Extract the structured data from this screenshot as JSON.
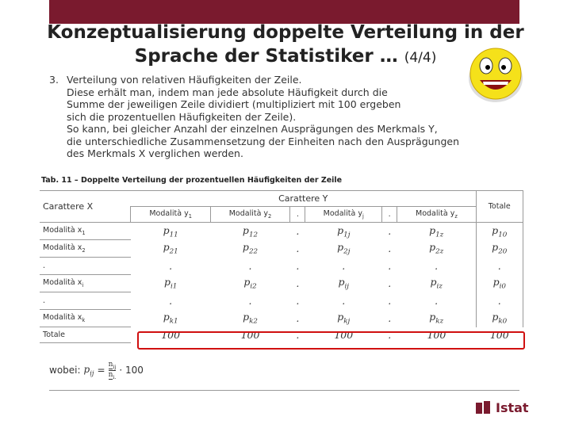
{
  "title": {
    "line1": "Konzeptualisierung doppelte Verteilung in der",
    "line2": "Sprache der Statistiker …",
    "counter": "(4/4)"
  },
  "point": {
    "number": "3.",
    "lines": [
      "Verteilung von relativen Häufigkeiten der Zeile.",
      "Diese erhält man, indem man jede absolute Häufigkeit durch die",
      "Summe der jeweiligen Zeile dividiert (multipliziert mit 100 ergeben",
      "sich die prozentuellen Häufigkeiten der Zeile).",
      "So kann, bei gleicher Anzahl der einzelnen Ausprägungen des Merkmals Y,",
      "die unterschiedliche Zusammensetzung der Einheiten nach den Ausprägungen",
      "des Merkmals X verglichen werden."
    ]
  },
  "table": {
    "caption": "Tab. 11 – Doppelte Verteilung der prozentuellen Häufigkeiten der Zeile",
    "row_header": "Carattere X",
    "group_header": "Carattere Y",
    "total_header": "Totale",
    "columns": [
      {
        "text": "Modalità y",
        "sub": "1"
      },
      {
        "text": "Modalità y",
        "sub": "2"
      },
      {
        "text": "."
      },
      {
        "text": "Modalità y",
        "sub": "j"
      },
      {
        "text": "."
      },
      {
        "text": "Modalità y",
        "sub": "z"
      }
    ],
    "rows": [
      {
        "label": {
          "text": "Modalità x",
          "sub": "1"
        },
        "cells": [
          {
            "text": "p",
            "sub": "11"
          },
          {
            "text": "p",
            "sub": "12"
          },
          {
            "text": "."
          },
          {
            "text": "p",
            "sub": "1j"
          },
          {
            "text": "."
          },
          {
            "text": "p",
            "sub": "1z"
          },
          {
            "text": "p",
            "sub": "10"
          }
        ]
      },
      {
        "label": {
          "text": "Modalità x",
          "sub": "2"
        },
        "cells": [
          {
            "text": "p",
            "sub": "21"
          },
          {
            "text": "p",
            "sub": "22"
          },
          {
            "text": "."
          },
          {
            "text": "p",
            "sub": "2j"
          },
          {
            "text": "."
          },
          {
            "text": "p",
            "sub": "2z"
          },
          {
            "text": "p",
            "sub": "20"
          }
        ]
      },
      {
        "label": {
          "text": "."
        },
        "cells": [
          {
            "text": "."
          },
          {
            "text": "."
          },
          {
            "text": "."
          },
          {
            "text": "."
          },
          {
            "text": "."
          },
          {
            "text": "."
          },
          {
            "text": "."
          }
        ]
      },
      {
        "label": {
          "text": "Modalità x",
          "sub": "i"
        },
        "cells": [
          {
            "text": "p",
            "sub": "i1"
          },
          {
            "text": "p",
            "sub": "i2"
          },
          {
            "text": "."
          },
          {
            "text": "p",
            "sub": "ij"
          },
          {
            "text": "."
          },
          {
            "text": "p",
            "sub": "iz"
          },
          {
            "text": "p",
            "sub": "i0"
          }
        ]
      },
      {
        "label": {
          "text": "."
        },
        "cells": [
          {
            "text": "."
          },
          {
            "text": "."
          },
          {
            "text": "."
          },
          {
            "text": "."
          },
          {
            "text": "."
          },
          {
            "text": "."
          },
          {
            "text": "."
          }
        ]
      },
      {
        "label": {
          "text": "Modalità x",
          "sub": "k"
        },
        "cells": [
          {
            "text": "p",
            "sub": "k1"
          },
          {
            "text": "p",
            "sub": "k2"
          },
          {
            "text": "."
          },
          {
            "text": "p",
            "sub": "kj"
          },
          {
            "text": "."
          },
          {
            "text": "p",
            "sub": "kz"
          },
          {
            "text": "p",
            "sub": "k0"
          }
        ]
      }
    ],
    "total_row": {
      "label": "Totale",
      "values": [
        100,
        100,
        ".",
        100,
        ".",
        100,
        100
      ]
    }
  },
  "formula": {
    "prefix": "wobei:",
    "lhs": {
      "text": "p",
      "sub": "ij"
    },
    "eq": "=",
    "numerator": {
      "text": "n",
      "sub": "ij"
    },
    "denominator": {
      "text": "n",
      "sub": "i."
    },
    "factor": "· 100"
  },
  "logo": "Istat"
}
